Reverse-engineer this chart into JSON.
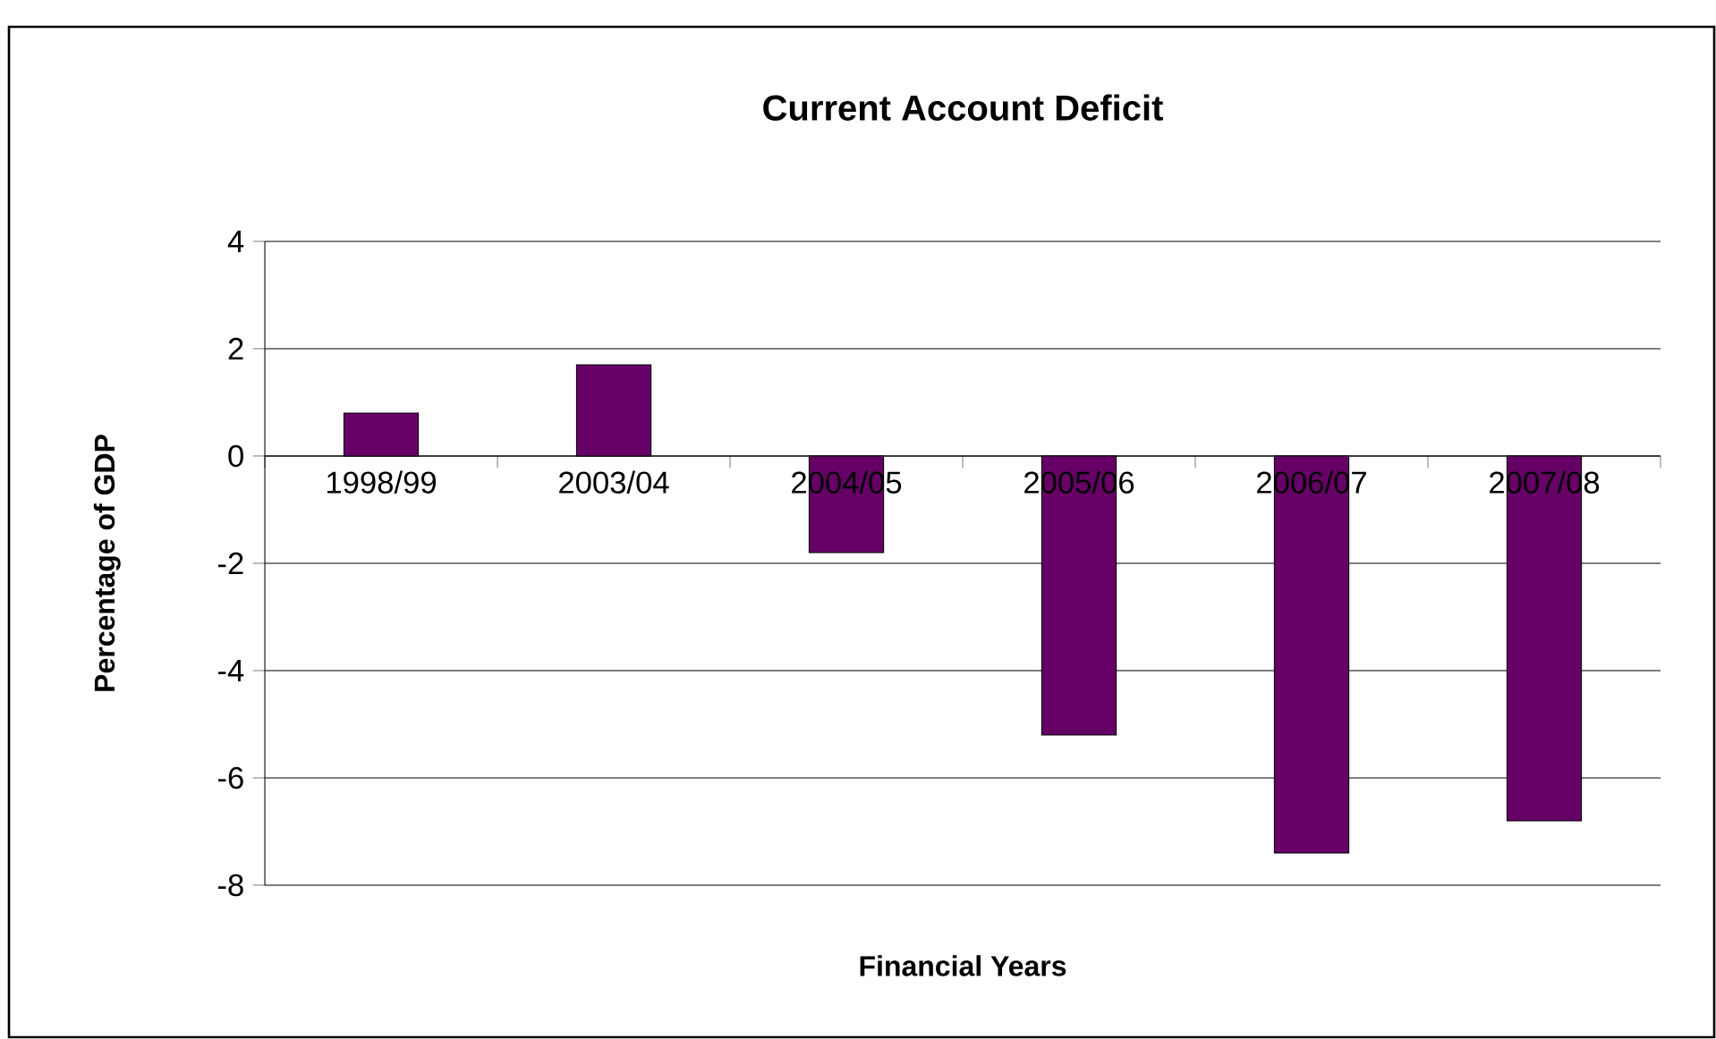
{
  "chart_data": {
    "type": "bar",
    "title": "Current Account Deficit",
    "xlabel": "Financial Years",
    "ylabel": "Percentage of GDP",
    "categories": [
      "1998/99",
      "2003/04",
      "2004/05",
      "2005/06",
      "2006/07",
      "2007/08"
    ],
    "values": [
      0.8,
      1.7,
      -1.8,
      -5.2,
      -7.4,
      -6.8
    ],
    "color": "#660066",
    "ylim": [
      -8,
      4
    ],
    "yticks": [
      -8,
      -6,
      -4,
      -2,
      0,
      2,
      4
    ],
    "grid": "y"
  }
}
